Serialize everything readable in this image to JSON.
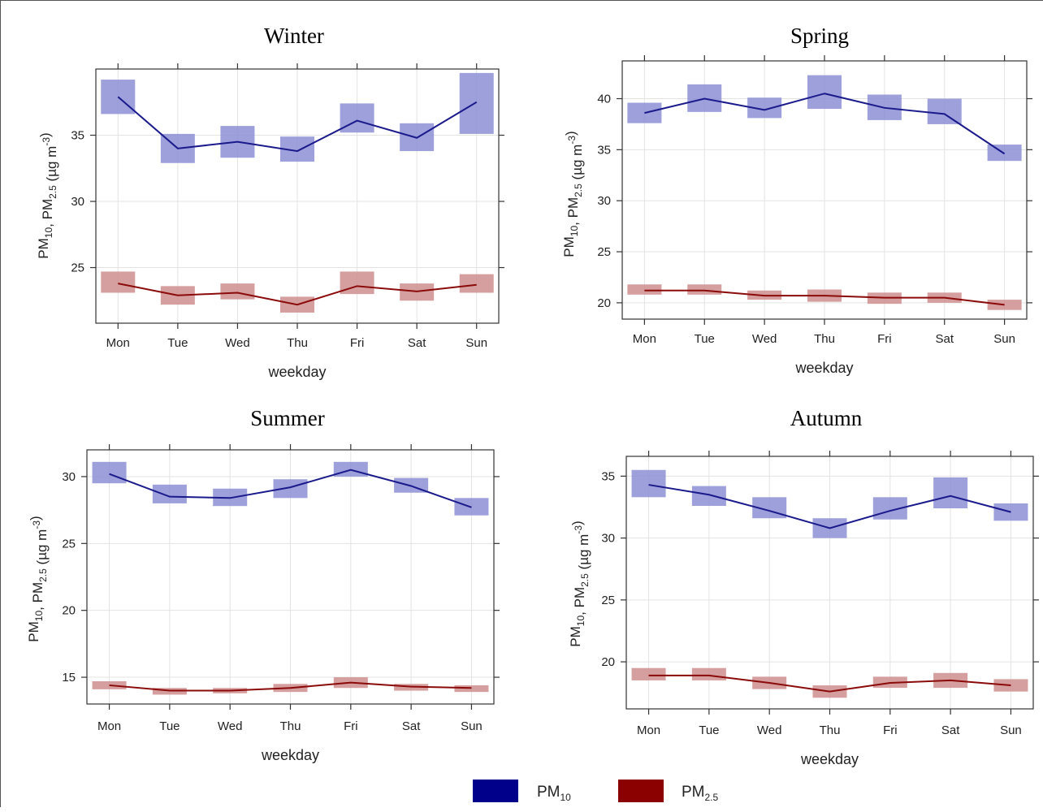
{
  "chart_data": [
    {
      "type": "line",
      "title": "Winter",
      "xlabel": "weekday",
      "ylabel": "PM10, PM2.5 (µg m-3)",
      "categories": [
        "Mon",
        "Tue",
        "Wed",
        "Thu",
        "Fri",
        "Sat",
        "Sun"
      ],
      "yticks": [
        25,
        30,
        35
      ],
      "ylim": [
        20.8,
        40.0
      ],
      "grid": true,
      "series": [
        {
          "name": "PM10",
          "values": [
            37.9,
            34.0,
            34.5,
            33.8,
            36.1,
            34.8,
            37.5
          ],
          "ci_low": [
            36.6,
            32.9,
            33.3,
            33.0,
            35.2,
            33.8,
            35.1
          ],
          "ci_high": [
            39.2,
            35.1,
            35.7,
            34.9,
            37.4,
            35.9,
            39.7
          ]
        },
        {
          "name": "PM2.5",
          "values": [
            23.8,
            22.9,
            23.1,
            22.2,
            23.6,
            23.2,
            23.7
          ],
          "ci_low": [
            23.1,
            22.2,
            22.6,
            21.6,
            23.0,
            22.5,
            23.1
          ],
          "ci_high": [
            24.7,
            23.6,
            23.8,
            22.8,
            24.7,
            23.8,
            24.5
          ]
        }
      ]
    },
    {
      "type": "line",
      "title": "Spring",
      "xlabel": "weekday",
      "ylabel": "PM10, PM2.5 (µg m-3)",
      "categories": [
        "Mon",
        "Tue",
        "Wed",
        "Thu",
        "Fri",
        "Sat",
        "Sun"
      ],
      "yticks": [
        20,
        25,
        30,
        35,
        40
      ],
      "ylim": [
        18.4,
        43.7
      ],
      "grid": true,
      "series": [
        {
          "name": "PM10",
          "values": [
            38.6,
            40.0,
            38.9,
            40.5,
            39.1,
            38.5,
            34.6
          ],
          "ci_low": [
            37.6,
            38.7,
            38.1,
            39.0,
            37.9,
            37.5,
            33.9
          ],
          "ci_high": [
            39.6,
            41.4,
            40.1,
            42.3,
            40.4,
            40.0,
            35.5
          ]
        },
        {
          "name": "PM2.5",
          "values": [
            21.2,
            21.2,
            20.7,
            20.7,
            20.5,
            20.5,
            19.8
          ],
          "ci_low": [
            20.8,
            20.8,
            20.3,
            20.1,
            19.9,
            20.0,
            19.3
          ],
          "ci_high": [
            21.8,
            21.8,
            21.2,
            21.3,
            21.0,
            21.0,
            20.3
          ]
        }
      ]
    },
    {
      "type": "line",
      "title": "Summer",
      "xlabel": "weekday",
      "ylabel": "PM10, PM2.5 (µg m-3)",
      "categories": [
        "Mon",
        "Tue",
        "Wed",
        "Thu",
        "Fri",
        "Sat",
        "Sun"
      ],
      "yticks": [
        15,
        20,
        25,
        30
      ],
      "ylim": [
        13.0,
        32.0
      ],
      "grid": true,
      "series": [
        {
          "name": "PM10",
          "values": [
            30.2,
            28.5,
            28.4,
            29.2,
            30.5,
            29.3,
            27.7
          ],
          "ci_low": [
            29.5,
            28.0,
            27.8,
            28.4,
            30.0,
            28.8,
            27.1
          ],
          "ci_high": [
            31.1,
            29.4,
            29.1,
            29.8,
            31.1,
            29.9,
            28.4
          ]
        },
        {
          "name": "PM2.5",
          "values": [
            14.4,
            14.0,
            14.0,
            14.2,
            14.6,
            14.3,
            14.2
          ],
          "ci_low": [
            14.1,
            13.7,
            13.8,
            13.9,
            14.2,
            14.0,
            13.9
          ],
          "ci_high": [
            14.7,
            14.2,
            14.2,
            14.5,
            15.0,
            14.5,
            14.4
          ]
        }
      ]
    },
    {
      "type": "line",
      "title": "Autumn",
      "xlabel": "weekday",
      "ylabel": "PM10, PM2.5 (µg m-3)",
      "categories": [
        "Mon",
        "Tue",
        "Wed",
        "Thu",
        "Fri",
        "Sat",
        "Sun"
      ],
      "yticks": [
        20,
        25,
        30,
        35
      ],
      "ylim": [
        16.2,
        36.6
      ],
      "grid": true,
      "series": [
        {
          "name": "PM10",
          "values": [
            34.3,
            33.5,
            32.2,
            30.8,
            32.2,
            33.4,
            32.1
          ],
          "ci_low": [
            33.3,
            32.6,
            31.6,
            30.0,
            31.5,
            32.4,
            31.4
          ],
          "ci_high": [
            35.5,
            34.2,
            33.3,
            31.6,
            33.3,
            34.9,
            32.8
          ]
        },
        {
          "name": "PM2.5",
          "values": [
            18.9,
            18.9,
            18.3,
            17.6,
            18.3,
            18.5,
            18.1
          ],
          "ci_low": [
            18.5,
            18.5,
            17.8,
            17.1,
            17.9,
            17.9,
            17.6
          ],
          "ci_high": [
            19.5,
            19.5,
            18.8,
            18.1,
            18.8,
            19.1,
            18.6
          ]
        }
      ]
    }
  ],
  "legend": {
    "items": [
      {
        "label": "PM",
        "sub": "10",
        "color": "#00008b"
      },
      {
        "label": "PM",
        "sub": "2.5",
        "color": "#8b0000"
      }
    ]
  },
  "colors": {
    "pm10_line": "#1a1a8c",
    "pm10_band": "#8c8fd3",
    "pm25_line": "#8b0a0a",
    "pm25_band": "#cf8e8e"
  }
}
